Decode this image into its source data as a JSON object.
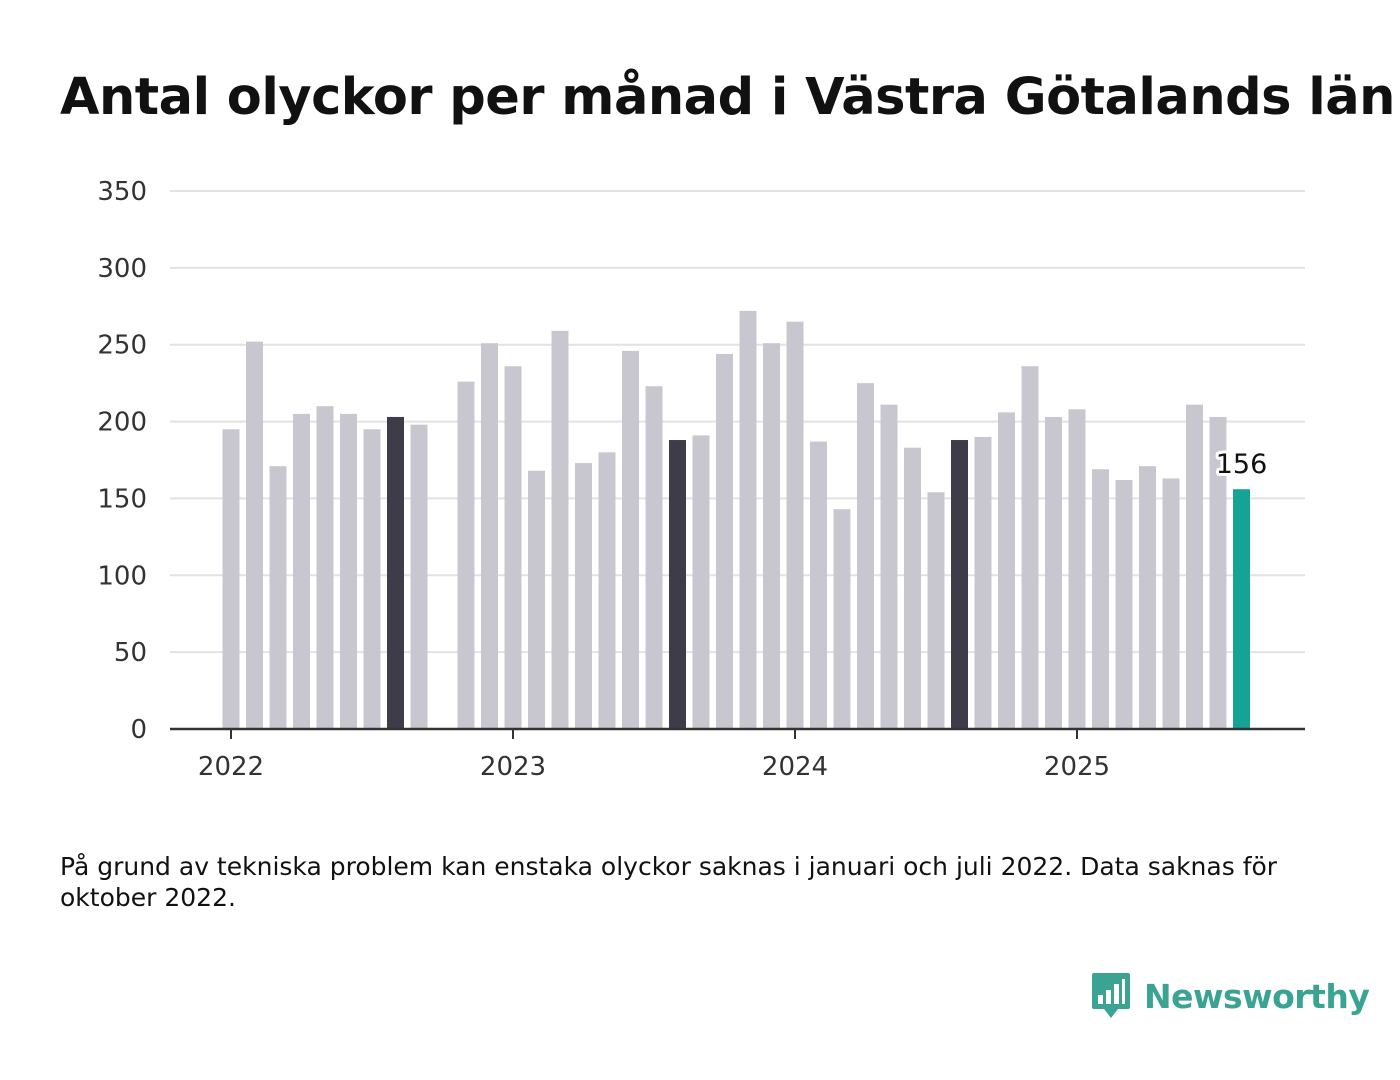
{
  "title": "Antal olyckor per månad i Västra Götalands län",
  "footnote": "På grund av tekniska problem kan enstaka olyckor saknas i januari och juli 2022. Data saknas för oktober 2022.",
  "brand": {
    "name": "Newsworthy",
    "icon": "newsworthy-logo-icon"
  },
  "colors": {
    "default_bar": "#c8c7cf",
    "highlight_bar": "#3d3c48",
    "latest_bar": "#16a396",
    "grid": "#e2e2e2",
    "axis": "#333333"
  },
  "chart_data": {
    "type": "bar",
    "title": "Antal olyckor per månad i Västra Götalands län",
    "xlabel": "",
    "ylabel": "",
    "ylim": [
      0,
      350
    ],
    "yticks": [
      0,
      50,
      100,
      150,
      200,
      250,
      300,
      350
    ],
    "xticks": [
      {
        "label": "2022",
        "month": "2022-01"
      },
      {
        "label": "2023",
        "month": "2023-01"
      },
      {
        "label": "2024",
        "month": "2024-01"
      },
      {
        "label": "2025",
        "month": "2025-01"
      }
    ],
    "grid": true,
    "latest_label": "156",
    "months": [
      "2022-01",
      "2022-02",
      "2022-03",
      "2022-04",
      "2022-05",
      "2022-06",
      "2022-07",
      "2022-08",
      "2022-09",
      "2022-10",
      "2022-11",
      "2022-12",
      "2023-01",
      "2023-02",
      "2023-03",
      "2023-04",
      "2023-05",
      "2023-06",
      "2023-07",
      "2023-08",
      "2023-09",
      "2023-10",
      "2023-11",
      "2023-12",
      "2024-01",
      "2024-02",
      "2024-03",
      "2024-04",
      "2024-05",
      "2024-06",
      "2024-07",
      "2024-08",
      "2024-09",
      "2024-10",
      "2024-11",
      "2024-12",
      "2025-01",
      "2025-02",
      "2025-03",
      "2025-04",
      "2025-05",
      "2025-06",
      "2025-07",
      "2025-08"
    ],
    "values": [
      195,
      252,
      171,
      205,
      210,
      205,
      195,
      203,
      198,
      null,
      226,
      251,
      236,
      168,
      259,
      173,
      180,
      246,
      223,
      188,
      191,
      244,
      272,
      251,
      265,
      187,
      143,
      225,
      211,
      183,
      154,
      188,
      190,
      206,
      236,
      203,
      208,
      169,
      162,
      171,
      163,
      211,
      203,
      156
    ],
    "highlighted": [
      "2022-08",
      "2023-08",
      "2024-08"
    ],
    "latest": "2025-08"
  }
}
